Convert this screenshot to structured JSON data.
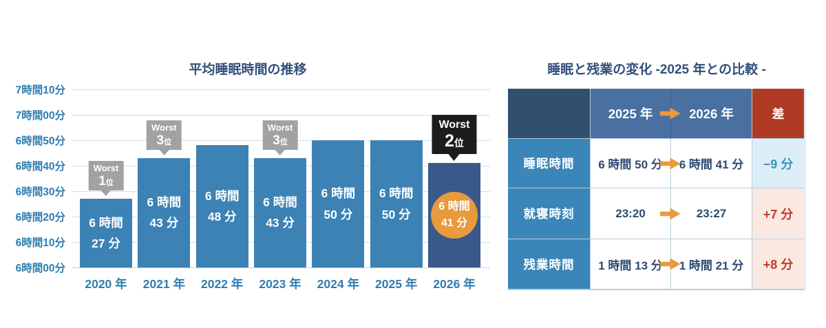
{
  "colors": {
    "bar_blue": "#3C82B5",
    "bar_highlight_navy": "#38598A",
    "highlight_circle_orange": "#E89A3D",
    "arrow_orange": "#E89A3D",
    "badge_gray": "#A2A2A2",
    "badge_black": "#1C1C1C",
    "axis_label_blue": "#2E7DB1",
    "title_navy": "#33507A",
    "gridline": "#CBDFE9",
    "table_border": "#B5CEDF",
    "table_header_dark_navy": "#315070",
    "table_header_blue": "#4A70A1",
    "table_header_red": "#B13A25",
    "table_row_label_blue": "#3A86B8",
    "table_value_text_navy": "#2C4A70",
    "diff_decrease_bg": "#DCEDF8",
    "diff_decrease_text": "#3A96C1",
    "diff_increase_bg": "#F9E9E1",
    "diff_increase_text": "#C23A28"
  },
  "chart_data": [
    {
      "type": "bar",
      "title": "平均睡眠時間の推移",
      "categories": [
        "2020 年",
        "2021 年",
        "2022 年",
        "2023 年",
        "2024 年",
        "2025 年",
        "2026 年"
      ],
      "values": [
        387,
        403,
        408,
        403,
        410,
        410,
        401
      ],
      "unit": "average sleep minutes per night",
      "value_labels": [
        [
          "6 時間",
          "27 分"
        ],
        [
          "6 時間",
          "43 分"
        ],
        [
          "6 時間",
          "48 分"
        ],
        [
          "6 時間",
          "43 分"
        ],
        [
          "6 時間",
          "50 分"
        ],
        [
          "6 時間",
          "50 分"
        ],
        [
          "6 時間",
          "41 分"
        ]
      ],
      "y_tick_labels": [
        "7時間10分",
        "7時間00分",
        "6時間50分",
        "6時間40分",
        "6時間30分",
        "6時間20分",
        "6時間10分",
        "6時間00分"
      ],
      "ylim": [
        360,
        430
      ],
      "grid": true,
      "legend": "none",
      "highlight_index": 6,
      "annotations": [
        {
          "bar_index": 0,
          "word": "Worst",
          "rank_number": "1",
          "rank_suffix": "位",
          "variant": "gray"
        },
        {
          "bar_index": 1,
          "word": "Worst",
          "rank_number": "3",
          "rank_suffix": "位",
          "variant": "gray"
        },
        {
          "bar_index": 3,
          "word": "Worst",
          "rank_number": "3",
          "rank_suffix": "位",
          "variant": "gray"
        },
        {
          "bar_index": 6,
          "word": "Worst",
          "rank_number": "2",
          "rank_suffix": "位",
          "variant": "black"
        }
      ]
    },
    {
      "type": "table",
      "title": "睡眠と残業の変化 -2025 年との比較 -",
      "columns": [
        "",
        "2025 年",
        "2026 年",
        "差"
      ],
      "rows": [
        {
          "label": "睡眠時間",
          "value_from": "6 時間 50 分",
          "value_to": "6 時間 41 分",
          "diff": "−9 分",
          "trend": "decrease"
        },
        {
          "label": "就寝時刻",
          "value_from": "23:20",
          "value_to": "23:27",
          "diff": "+7 分",
          "trend": "increase"
        },
        {
          "label": "残業時間",
          "value_from": "1 時間 13 分",
          "value_to": "1 時間 21 分",
          "diff": "+8 分",
          "trend": "increase"
        }
      ]
    }
  ]
}
